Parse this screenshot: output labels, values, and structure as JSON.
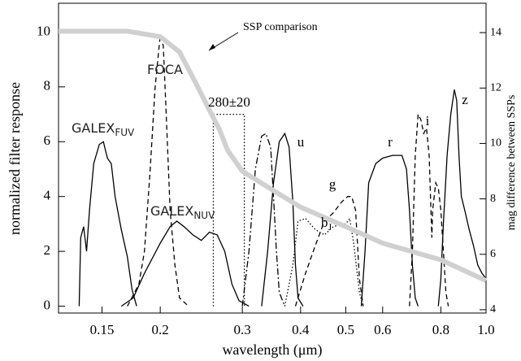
{
  "chart_data": {
    "type": "line",
    "xlabel": "wavelength (μm)",
    "ylabel": "normalized filter response",
    "y2label": "mag difference between SSPs",
    "xscale": "log",
    "xlim": [
      0.121,
      1.0
    ],
    "ylim": [
      -0.25,
      11.05
    ],
    "y2lim": [
      3.88,
      15.06
    ],
    "xticks": [
      0.15,
      0.2,
      0.3,
      0.4,
      0.5,
      0.6,
      0.8,
      {
        "value": 1,
        "label": "1.0"
      }
    ],
    "yticks": [
      0,
      2,
      4,
      6,
      8,
      10
    ],
    "y2ticks": [
      4,
      6,
      8,
      10,
      12,
      14
    ],
    "series": [
      {
        "label": "GALEX",
        "label_sub": "FUV",
        "color": "#000",
        "dash": "solid",
        "x": [
          0.134,
          0.135,
          0.137,
          0.139,
          0.141,
          0.144,
          0.148,
          0.151,
          0.154,
          0.157,
          0.16,
          0.165,
          0.17,
          0.174,
          0.178
        ],
        "values": [
          0,
          2.5,
          2.9,
          2.0,
          3.5,
          5.2,
          5.9,
          6.0,
          5.4,
          5.2,
          4.0,
          2.8,
          1.8,
          0.6,
          0
        ]
      },
      {
        "label": "FOCA",
        "color": "#000",
        "dash": "dashed",
        "x": [
          0.17,
          0.18,
          0.185,
          0.19,
          0.195,
          0.2,
          0.203,
          0.206,
          0.21,
          0.215,
          0.22,
          0.23
        ],
        "values": [
          0,
          0.8,
          2,
          4.8,
          8,
          9.9,
          9.5,
          7,
          3.5,
          1.5,
          0.3,
          0
        ]
      },
      {
        "label": "GALEX",
        "label_sub": "NUV",
        "color": "#000",
        "dash": "solid",
        "x": [
          0.165,
          0.175,
          0.185,
          0.2,
          0.21,
          0.217,
          0.225,
          0.235,
          0.245,
          0.255,
          0.265,
          0.275,
          0.285,
          0.295,
          0.31
        ],
        "values": [
          0,
          0.3,
          1.2,
          2.3,
          2.9,
          3.1,
          2.9,
          2.6,
          2.4,
          2.7,
          2.6,
          2.0,
          0.8,
          0.2,
          0
        ]
      },
      {
        "label": "280±20",
        "color": "#000",
        "dash": "dotted",
        "x": [
          0.26,
          0.26,
          0.303,
          0.303
        ],
        "values": [
          0,
          7,
          7,
          0
        ]
      },
      {
        "color": "#000",
        "dash": "dashdot",
        "x": [
          0.3,
          0.31,
          0.32,
          0.33,
          0.337,
          0.345,
          0.35,
          0.355,
          0.36,
          0.37
        ],
        "values": [
          0,
          2,
          5,
          6.2,
          6.3,
          5.8,
          4,
          2,
          0.5,
          0
        ]
      },
      {
        "label": "u",
        "color": "#000",
        "dash": "solid",
        "x": [
          0.33,
          0.34,
          0.35,
          0.36,
          0.37,
          0.378,
          0.385,
          0.39,
          0.395,
          0.405
        ],
        "values": [
          0,
          2,
          4.5,
          6,
          6.3,
          5.8,
          3.8,
          1.5,
          0.3,
          0
        ]
      },
      {
        "label": "b",
        "label_sub": "J",
        "color": "#000",
        "dash": "dotted",
        "x": [
          0.37,
          0.385,
          0.395,
          0.41,
          0.43,
          0.45,
          0.47,
          0.49,
          0.5,
          0.51,
          0.52,
          0.535,
          0.545
        ],
        "values": [
          0,
          1.5,
          3.1,
          3.2,
          2.8,
          2.6,
          2.9,
          3.0,
          3.0,
          3.2,
          2.3,
          0.5,
          0
        ]
      },
      {
        "label": "g",
        "color": "#000",
        "dash": "dashed",
        "x": [
          0.39,
          0.41,
          0.43,
          0.45,
          0.47,
          0.49,
          0.505,
          0.515,
          0.525,
          0.535,
          0.545
        ],
        "values": [
          0,
          1.2,
          2.2,
          3.1,
          3.4,
          3.8,
          4.0,
          4.0,
          3.5,
          1,
          0
        ]
      },
      {
        "label": "r",
        "color": "#000",
        "dash": "solid",
        "x": [
          0.54,
          0.55,
          0.56,
          0.58,
          0.6,
          0.63,
          0.66,
          0.675,
          0.685,
          0.695,
          0.705,
          0.715
        ],
        "values": [
          0,
          2,
          4.5,
          5.2,
          5.4,
          5.5,
          5.5,
          5.0,
          3.5,
          1.5,
          0.3,
          0
        ]
      },
      {
        "label": "i",
        "color": "#000",
        "dash": "dashed",
        "x": [
          0.685,
          0.695,
          0.705,
          0.715,
          0.725,
          0.735,
          0.745,
          0.755,
          0.765,
          0.768,
          0.78,
          0.79,
          0.8,
          0.81,
          0.82,
          0.83
        ],
        "values": [
          0,
          2,
          5.5,
          7.0,
          6.8,
          6.3,
          6.5,
          5.5,
          2.5,
          3.5,
          4.5,
          4.3,
          3.5,
          2,
          0.5,
          0
        ]
      },
      {
        "label": "z",
        "color": "#000",
        "dash": "solid",
        "x": [
          0.79,
          0.8,
          0.81,
          0.825,
          0.84,
          0.855,
          0.865,
          0.875,
          0.885,
          0.9,
          0.92,
          0.94,
          0.96,
          0.98,
          1.0
        ],
        "values": [
          0,
          1,
          3,
          5.5,
          7.0,
          7.9,
          7.5,
          5.5,
          4,
          3.5,
          2.8,
          2.2,
          1.5,
          1.2,
          1.0
        ]
      },
      {
        "label": "SSP comparison",
        "color": "#d0d0d0",
        "dash": "thick",
        "axis": "y2",
        "x": [
          0.121,
          0.17,
          0.2,
          0.22,
          0.238,
          0.255,
          0.268,
          0.279,
          0.3,
          0.35,
          0.4,
          0.5,
          0.6,
          0.8,
          1.0
        ],
        "values": [
          14.05,
          14.05,
          13.85,
          13.3,
          12.2,
          11.2,
          10.5,
          9.75,
          9.0,
          8.3,
          7.7,
          7.0,
          6.4,
          5.8,
          5.05
        ]
      }
    ]
  }
}
